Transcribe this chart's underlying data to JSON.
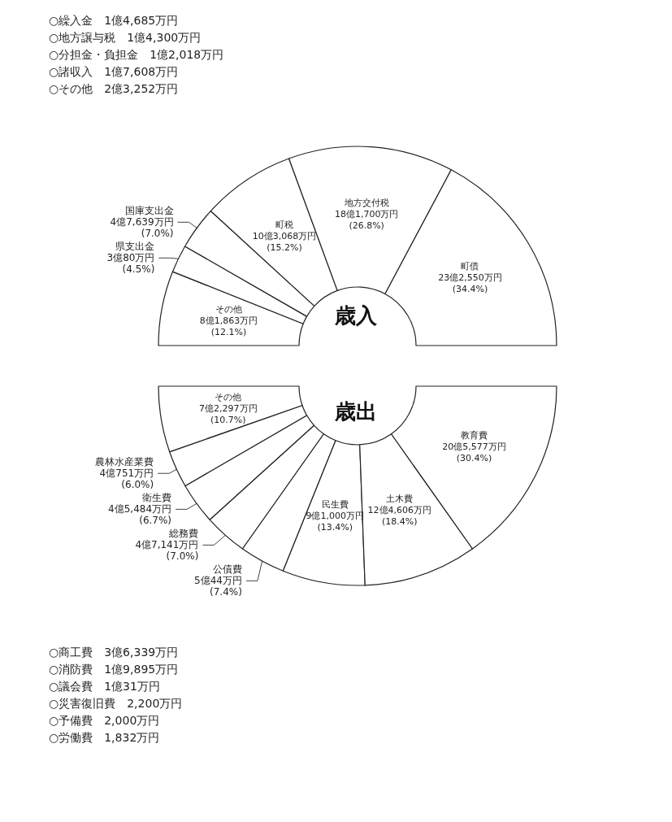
{
  "chart_data": [
    {
      "type": "donut",
      "title": "歳入",
      "categories": [
        "その他",
        "県支出金",
        "国庫支出金",
        "町税",
        "地方交付税",
        "町債"
      ],
      "values": [
        12.1,
        4.5,
        7.0,
        15.2,
        26.8,
        34.4
      ],
      "value_labels": [
        "8億1,863万円(12.1%)",
        "3億80万円(4.5%)",
        "4億7,639万円(7.0%)",
        "10億3,068万円(15.2%)",
        "18億1,700万円(26.8%)",
        "23億2,550万円(34.4%)"
      ],
      "colors": [
        "#ffffff",
        "#ffffff",
        "#ffffff",
        "#ffffff",
        "#ffffff",
        "#ffffff"
      ],
      "annotations": [
        "○繰入金　1億4,685万円",
        "○地方譲与税　1億4,300万円",
        "○分担金・負担金　1億2,018万円",
        "○諸収入　1億7,608万円",
        "○その他　2億3,252万円"
      ]
    },
    {
      "type": "donut",
      "title": "歳出",
      "categories": [
        "その他",
        "農林水産業費",
        "衛生費",
        "総務費",
        "公債費",
        "民生費",
        "土木費",
        "教育費"
      ],
      "values": [
        10.7,
        6.0,
        6.7,
        7.0,
        7.4,
        13.4,
        18.4,
        30.4
      ],
      "value_labels": [
        "7億2,297万円(10.7%)",
        "4億751万円(6.0%)",
        "4億5,484万円(6.7%)",
        "4億7,141万円(7.0%)",
        "5億44万円(7.4%)",
        "9億1,000万円(13.4%)",
        "12億4,606万円(18.4%)",
        "20億5,577万円(30.4%)"
      ],
      "colors": [
        "#ffffff",
        "#ffffff",
        "#ffffff",
        "#ffffff",
        "#ffffff",
        "#ffffff",
        "#ffffff",
        "#ffffff"
      ],
      "annotations": [
        "○商工費　3億6,339万円",
        "○消防費　1億9,895万円",
        "○議会費　1億31万円",
        "○災害復旧費　2,200万円",
        "○予備費　2,000万円",
        "○労働費　1,832万円"
      ]
    }
  ]
}
